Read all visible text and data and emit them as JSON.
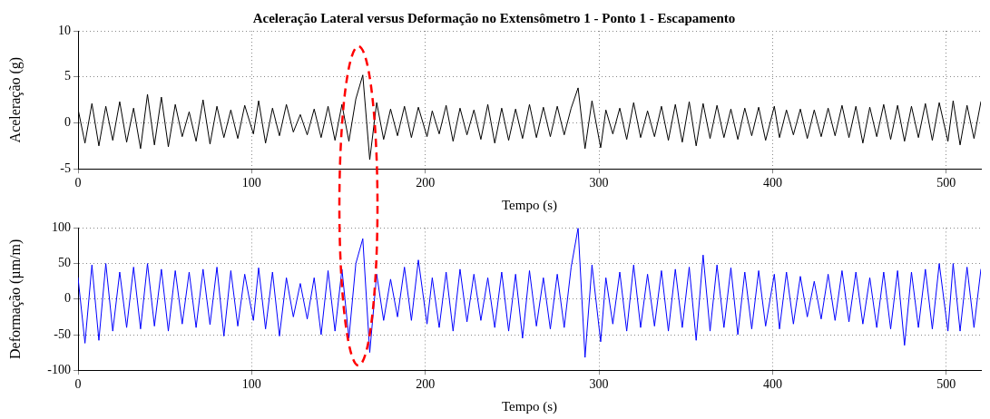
{
  "chart_data": [
    {
      "type": "line",
      "title": "Aceleração Lateral versus Deformação no Extensômetro 1 - Ponto 1 - Escapamento",
      "xlabel": "Tempo (s)",
      "ylabel": "Aceleração (g)",
      "x": [
        0,
        4,
        8,
        12,
        16,
        20,
        24,
        28,
        32,
        36,
        40,
        44,
        48,
        52,
        56,
        60,
        64,
        68,
        72,
        76,
        80,
        84,
        88,
        92,
        96,
        101,
        104,
        108,
        112,
        116,
        120,
        124,
        128,
        132,
        136,
        140,
        144,
        148,
        152,
        156,
        160,
        164,
        168,
        172,
        176,
        180,
        184,
        188,
        192,
        196,
        201,
        204,
        208,
        212,
        216,
        220,
        224,
        228,
        232,
        236,
        240,
        244,
        248,
        252,
        256,
        260,
        264,
        268,
        272,
        276,
        280,
        284,
        288,
        292,
        296,
        301,
        304,
        308,
        312,
        316,
        320,
        324,
        328,
        332,
        336,
        340,
        344,
        348,
        352,
        356,
        360,
        364,
        368,
        372,
        376,
        380,
        384,
        388,
        392,
        396,
        401,
        404,
        408,
        412,
        416,
        420,
        424,
        428,
        432,
        436,
        440,
        444,
        448,
        452,
        456,
        460,
        464,
        468,
        472,
        476,
        480,
        484,
        488,
        492,
        496,
        501,
        504,
        508,
        512,
        516,
        520
      ],
      "series": [
        {
          "color": "#000000",
          "values": [
            1.5,
            -2.2,
            2.1,
            -2.5,
            1.8,
            -1.9,
            2.3,
            -2.1,
            1.6,
            -2.8,
            3.1,
            -2.4,
            2.8,
            -2.6,
            2.0,
            -1.5,
            1.2,
            -2.0,
            2.5,
            -2.3,
            1.8,
            -1.6,
            1.4,
            -1.7,
            1.9,
            -1.2,
            2.4,
            -2.2,
            1.6,
            -1.4,
            2.0,
            -1.0,
            0.9,
            -1.3,
            1.5,
            -1.6,
            1.8,
            -1.9,
            2.0,
            -2.0,
            2.6,
            5.2,
            -4.0,
            2.2,
            -1.8,
            1.5,
            -1.4,
            1.8,
            -1.6,
            1.7,
            -1.5,
            1.3,
            -1.2,
            1.9,
            -2.0,
            1.6,
            -1.3,
            1.4,
            -1.8,
            2.0,
            -2.2,
            1.6,
            -1.9,
            1.5,
            -1.7,
            2.0,
            -1.6,
            1.7,
            -1.5,
            1.8,
            -1.3,
            1.6,
            3.8,
            -2.8,
            2.4,
            -2.7,
            1.4,
            -1.2,
            1.6,
            -1.8,
            2.2,
            -1.6,
            1.3,
            -1.5,
            1.8,
            -1.9,
            2.0,
            -2.1,
            2.3,
            -2.5,
            2.1,
            -1.7,
            1.9,
            -1.6,
            1.5,
            -1.8,
            1.6,
            -1.4,
            1.7,
            -1.9,
            1.8,
            -1.6,
            1.4,
            -1.3,
            1.5,
            -1.7,
            1.4,
            -1.5,
            1.6,
            -1.4,
            1.9,
            -1.6,
            1.8,
            -2.2,
            1.7,
            -1.5,
            2.0,
            -1.8,
            1.9,
            -2.0,
            1.8,
            -1.6,
            2.1,
            -1.9,
            2.2,
            -2.0,
            2.4,
            -2.4,
            1.9,
            -1.7,
            2.3
          ]
        }
      ],
      "xlim": [
        0,
        520
      ],
      "xticks": [
        0,
        100,
        200,
        300,
        400,
        500
      ],
      "ylim": [
        -5,
        10
      ],
      "yticks": [
        -5,
        0,
        5,
        10
      ],
      "grid": true,
      "line_style": "solid"
    },
    {
      "type": "line",
      "xlabel": "Tempo (s)",
      "ylabel": "Deformação (µm/m)",
      "x": [
        0,
        4,
        8,
        12,
        16,
        20,
        24,
        28,
        32,
        36,
        40,
        44,
        48,
        52,
        56,
        60,
        64,
        68,
        72,
        76,
        80,
        84,
        88,
        92,
        96,
        101,
        104,
        108,
        112,
        116,
        120,
        124,
        128,
        132,
        136,
        140,
        144,
        148,
        152,
        156,
        160,
        164,
        168,
        172,
        176,
        180,
        184,
        188,
        192,
        196,
        201,
        204,
        208,
        212,
        216,
        220,
        224,
        228,
        232,
        236,
        240,
        244,
        248,
        252,
        256,
        260,
        264,
        268,
        272,
        276,
        280,
        284,
        288,
        292,
        296,
        301,
        304,
        308,
        312,
        316,
        320,
        324,
        328,
        332,
        336,
        340,
        344,
        348,
        352,
        356,
        360,
        364,
        368,
        372,
        376,
        380,
        384,
        388,
        392,
        396,
        401,
        404,
        408,
        412,
        416,
        420,
        424,
        428,
        432,
        436,
        440,
        444,
        448,
        452,
        456,
        460,
        464,
        468,
        472,
        476,
        480,
        484,
        488,
        492,
        496,
        501,
        504,
        508,
        512,
        516,
        520
      ],
      "series": [
        {
          "color": "#0000ff",
          "values": [
            30,
            -62,
            48,
            -58,
            50,
            -45,
            38,
            -40,
            45,
            -42,
            50,
            -38,
            42,
            -45,
            40,
            -35,
            38,
            -40,
            42,
            -36,
            45,
            -52,
            40,
            -38,
            35,
            -30,
            44,
            -42,
            38,
            -52,
            30,
            -25,
            22,
            -28,
            30,
            -50,
            40,
            -45,
            42,
            -55,
            50,
            85,
            -75,
            35,
            -30,
            28,
            -25,
            45,
            -30,
            55,
            -35,
            30,
            -40,
            38,
            -45,
            42,
            -32,
            35,
            -30,
            30,
            -40,
            38,
            -45,
            35,
            -55,
            40,
            -38,
            30,
            -42,
            35,
            -40,
            45,
            100,
            -82,
            48,
            -60,
            30,
            -35,
            38,
            -45,
            48,
            -40,
            35,
            -38,
            40,
            -45,
            42,
            -40,
            45,
            -58,
            62,
            -45,
            48,
            -40,
            44,
            -50,
            38,
            -42,
            40,
            -38,
            35,
            -42,
            38,
            -35,
            32,
            -25,
            25,
            -28,
            35,
            -30,
            40,
            -32,
            38,
            -35,
            30,
            -40,
            38,
            -42,
            40,
            -65,
            38,
            -40,
            42,
            -42,
            50,
            -45,
            50,
            -45,
            45,
            -40,
            42
          ]
        }
      ],
      "xlim": [
        0,
        520
      ],
      "xticks": [
        0,
        100,
        200,
        300,
        400,
        500
      ],
      "ylim": [
        -100,
        100
      ],
      "yticks": [
        -100,
        -50,
        0,
        50,
        100
      ],
      "grid": true,
      "line_style": "solid"
    }
  ]
}
